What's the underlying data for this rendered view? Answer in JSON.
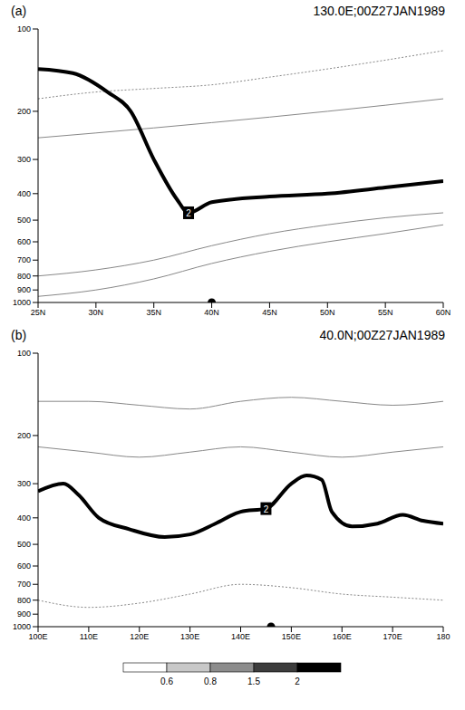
{
  "chart_data": [
    {
      "type": "line",
      "panel": "(a)",
      "title": "130.0E;00Z27JAN1989",
      "xlim": [
        25,
        60
      ],
      "xticks": [
        {
          "value": 25,
          "label": "25N"
        },
        {
          "value": 30,
          "label": "30N"
        },
        {
          "value": 35,
          "label": "35N"
        },
        {
          "value": 40,
          "label": "40N"
        },
        {
          "value": 45,
          "label": "45N"
        },
        {
          "value": 50,
          "label": "50N"
        },
        {
          "value": 55,
          "label": "55N"
        },
        {
          "value": 60,
          "label": "60N"
        }
      ],
      "ylim": [
        100,
        1000
      ],
      "yticks": [
        100,
        200,
        300,
        400,
        500,
        600,
        700,
        800,
        900,
        1000
      ],
      "log": "y",
      "series": [
        {
          "color": "#888888",
          "line_style": "solid",
          "x": [
            25,
            30,
            35,
            40,
            45,
            50,
            55,
            60
          ],
          "values": [
            950,
            900,
            820,
            720,
            650,
            600,
            560,
            520
          ]
        },
        {
          "color": "#888888",
          "line_style": "solid",
          "x": [
            25,
            30,
            35,
            40,
            45,
            50,
            55,
            60
          ],
          "values": [
            800,
            760,
            700,
            620,
            560,
            520,
            490,
            470
          ]
        },
        {
          "color": "#888888",
          "line_style": "solid",
          "x": [
            25,
            30,
            35,
            40,
            45,
            50,
            55,
            60
          ],
          "values": [
            250,
            240,
            230,
            220,
            210,
            200,
            190,
            180
          ]
        },
        {
          "color": "#888888",
          "line_style": "dotted",
          "x": [
            25,
            30,
            35,
            40,
            45,
            50,
            55,
            60
          ],
          "values": [
            180,
            170,
            165,
            160,
            150,
            140,
            130,
            120
          ]
        },
        {
          "name": "2",
          "color": "#000000",
          "line_style": "thick",
          "x": [
            25,
            28,
            31,
            33,
            35,
            37,
            38,
            40,
            45,
            50,
            55,
            60
          ],
          "values": [
            140,
            145,
            170,
            200,
            300,
            420,
            470,
            430,
            410,
            400,
            380,
            360
          ]
        },
        {
          "type": "scatter",
          "marker": "circle",
          "color": "#000000",
          "x": [
            40
          ],
          "values": [
            1000
          ]
        }
      ]
    },
    {
      "type": "line",
      "panel": "(b)",
      "title": "40.0N;00Z27JAN1989",
      "xlim": [
        100,
        180
      ],
      "xticks": [
        {
          "value": 100,
          "label": "100E"
        },
        {
          "value": 110,
          "label": "110E"
        },
        {
          "value": 120,
          "label": "120E"
        },
        {
          "value": 130,
          "label": "130E"
        },
        {
          "value": 140,
          "label": "140E"
        },
        {
          "value": 150,
          "label": "150E"
        },
        {
          "value": 160,
          "label": "160E"
        },
        {
          "value": 170,
          "label": "170E"
        },
        180
      ],
      "ylim": [
        100,
        1000
      ],
      "yticks": [
        100,
        200,
        300,
        400,
        500,
        600,
        700,
        800,
        900,
        1000
      ],
      "log": "y",
      "series": [
        {
          "color": "#888888",
          "line_style": "solid",
          "x": [
            100,
            110,
            120,
            130,
            140,
            150,
            160,
            170,
            180
          ],
          "values": [
            220,
            230,
            240,
            230,
            220,
            230,
            240,
            230,
            220
          ]
        },
        {
          "color": "#888888",
          "line_style": "solid",
          "x": [
            100,
            110,
            120,
            130,
            140,
            150,
            160,
            170,
            180
          ],
          "values": [
            150,
            150,
            155,
            160,
            150,
            145,
            150,
            155,
            150
          ]
        },
        {
          "color": "#888888",
          "line_style": "dotted",
          "x": [
            100,
            110,
            120,
            130,
            140,
            150,
            160,
            170,
            180
          ],
          "values": [
            800,
            850,
            820,
            760,
            700,
            720,
            760,
            780,
            800
          ]
        },
        {
          "name": "2",
          "color": "#000000",
          "line_style": "thick",
          "x": [
            100,
            105,
            108,
            112,
            118,
            125,
            130,
            135,
            140,
            145,
            150,
            153,
            156,
            158,
            162,
            167,
            172,
            176,
            180
          ],
          "values": [
            320,
            300,
            330,
            400,
            440,
            470,
            460,
            420,
            380,
            370,
            300,
            280,
            290,
            380,
            430,
            420,
            390,
            410,
            420
          ]
        },
        {
          "type": "scatter",
          "marker": "circle",
          "color": "#000000",
          "x": [
            146
          ],
          "values": [
            1000
          ]
        }
      ]
    }
  ],
  "colorbar": {
    "ticks": [
      0.6,
      0.8,
      1.5,
      2
    ]
  }
}
